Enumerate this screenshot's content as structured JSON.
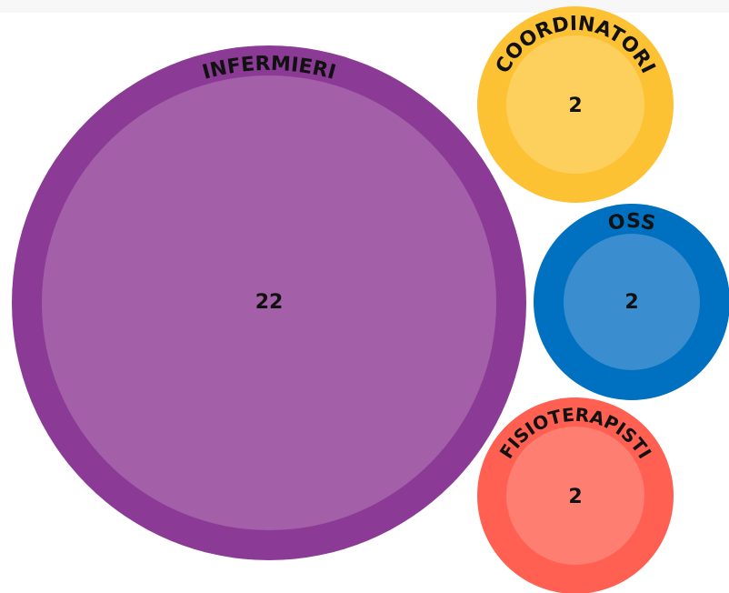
{
  "nodes": [
    {
      "label": "INFERMIERI",
      "value": "22"
    },
    {
      "label": "COORDINATORI",
      "value": "2"
    },
    {
      "label": "OSS",
      "value": "2"
    },
    {
      "label": "FISIOTERAPISTI",
      "value": "2"
    }
  ]
}
